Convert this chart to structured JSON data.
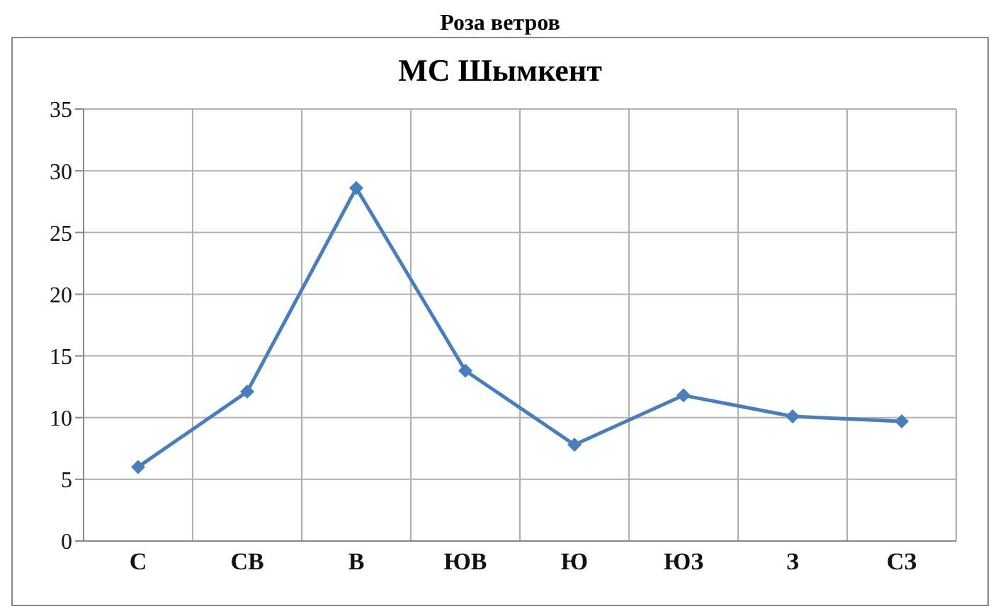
{
  "chart_data": {
    "type": "line",
    "title": "Роза ветров",
    "subtitle": "МС  Шымкент",
    "categories": [
      "С",
      "СВ",
      "В",
      "ЮВ",
      "Ю",
      "ЮЗ",
      "З",
      "СЗ"
    ],
    "series": [
      {
        "color": "#4a7ebb",
        "values": [
          6,
          12.1,
          28.6,
          13.8,
          7.8,
          11.8,
          10.1,
          9.7
        ]
      }
    ],
    "ylim": [
      0,
      35
    ],
    "yticks": [
      0,
      5,
      10,
      15,
      20,
      25,
      30,
      35
    ],
    "grid": true,
    "marker": "diamond",
    "line_style": "solid"
  }
}
